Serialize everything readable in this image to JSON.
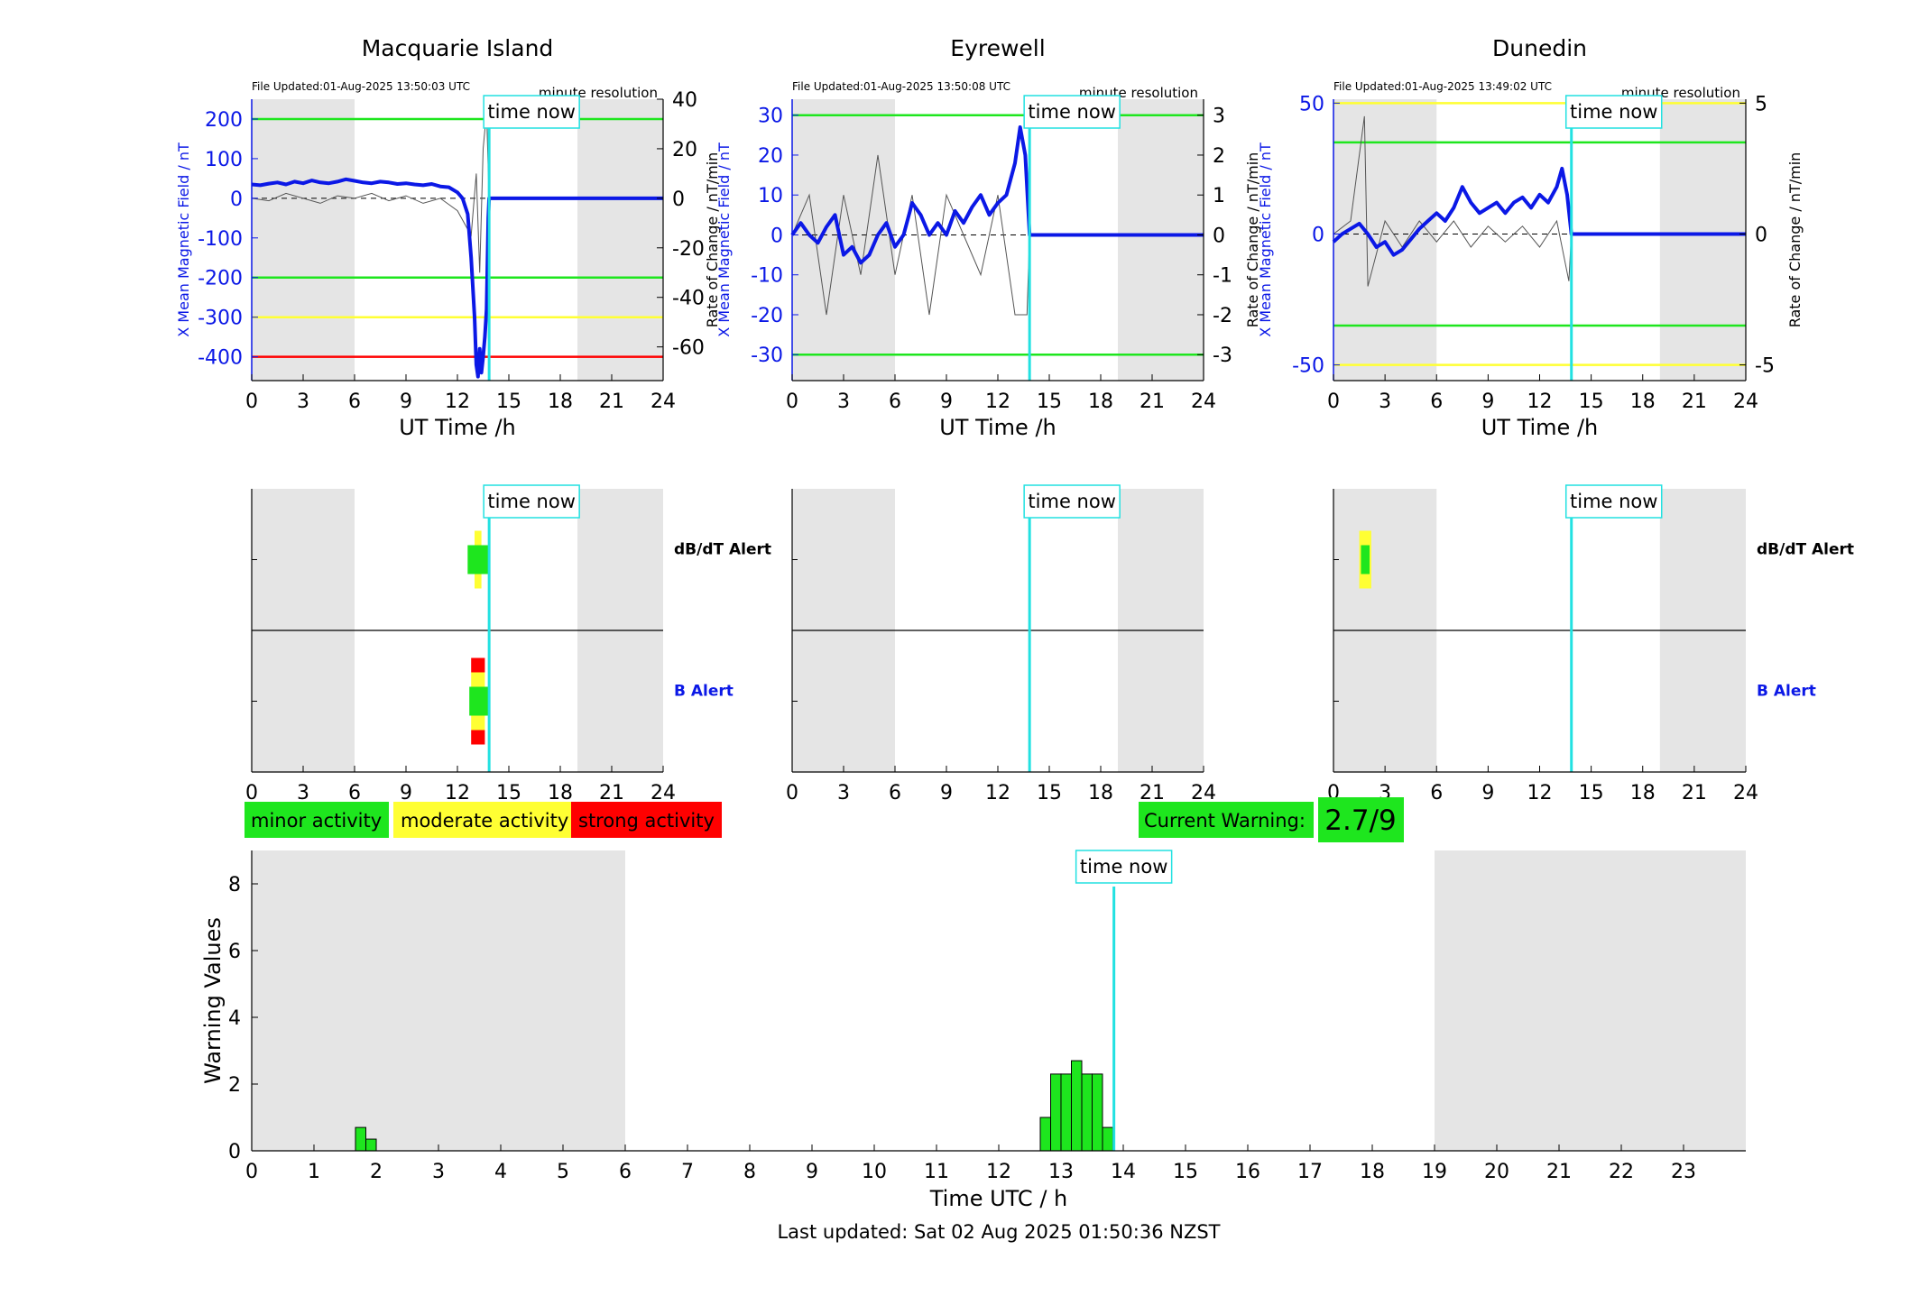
{
  "colors": {
    "field_line": "#0b18e6",
    "rate_line": "#555555",
    "night_shade": "#e5e5e5",
    "time_now": "#22e1e1",
    "minor": "#1ee61e",
    "moderate": "#ffff33",
    "strong": "#ff0000",
    "axis_blue": "#0b18e6"
  },
  "common": {
    "time_now_label": "time now",
    "time_now_hour": 13.85,
    "ut_xlabel": "UT Time /h",
    "resolution_label": "minute resolution",
    "x_ticks": [
      "0",
      "3",
      "6",
      "9",
      "12",
      "15",
      "18",
      "21",
      "24"
    ],
    "y_left_label": "X Mean Magnetic Field / nT",
    "y_right_label": "Rate of Change / nT/min",
    "night_ranges": [
      [
        0,
        6
      ],
      [
        19,
        24
      ]
    ],
    "dbdt_alert_label": "dB/dT Alert",
    "b_alert_label": "B Alert"
  },
  "legend": {
    "minor": "minor activity",
    "moderate": "moderate activity",
    "strong": "strong activity"
  },
  "current_warning": {
    "label": "Current Warning:",
    "value": "2.7/9"
  },
  "chart_data": [
    {
      "type": "line",
      "title": "Macquarie Island",
      "file_updated": "File Updated:01-Aug-2025 13:50:03 UTC",
      "ylim_left": [
        -460,
        250
      ],
      "yticks_left": [
        "200",
        "100",
        "0",
        "-100",
        "-200",
        "-300",
        "-400"
      ],
      "ylim_right": [
        -73.6,
        40
      ],
      "yticks_right": [
        "40",
        "20",
        "0",
        "-20",
        "-40",
        "-60"
      ],
      "thresholds": [
        {
          "value": 200,
          "level": "minor"
        },
        {
          "value": -200,
          "level": "minor"
        },
        {
          "value": -300,
          "level": "moderate"
        },
        {
          "value": -400,
          "level": "strong"
        }
      ],
      "series_field": [
        [
          0,
          35
        ],
        [
          0.5,
          33
        ],
        [
          1,
          37
        ],
        [
          1.5,
          40
        ],
        [
          2,
          35
        ],
        [
          2.5,
          42
        ],
        [
          3,
          38
        ],
        [
          3.5,
          45
        ],
        [
          4,
          40
        ],
        [
          4.5,
          38
        ],
        [
          5,
          42
        ],
        [
          5.5,
          48
        ],
        [
          6,
          44
        ],
        [
          6.5,
          40
        ],
        [
          7,
          38
        ],
        [
          7.5,
          42
        ],
        [
          8,
          40
        ],
        [
          8.5,
          36
        ],
        [
          9,
          38
        ],
        [
          9.5,
          35
        ],
        [
          10,
          33
        ],
        [
          10.5,
          36
        ],
        [
          11,
          30
        ],
        [
          11.5,
          28
        ],
        [
          12,
          15
        ],
        [
          12.3,
          0
        ],
        [
          12.6,
          -40
        ],
        [
          12.8,
          -150
        ],
        [
          13,
          -300
        ],
        [
          13.1,
          -420
        ],
        [
          13.2,
          -450
        ],
        [
          13.3,
          -380
        ],
        [
          13.4,
          -440
        ],
        [
          13.5,
          -400
        ],
        [
          13.6,
          -350
        ],
        [
          13.7,
          -280
        ],
        [
          13.8,
          -50
        ],
        [
          13.85,
          0
        ],
        [
          24,
          0
        ]
      ],
      "series_rate": [
        [
          0,
          0
        ],
        [
          1,
          -1
        ],
        [
          2,
          2
        ],
        [
          3,
          0
        ],
        [
          4,
          -2
        ],
        [
          5,
          1
        ],
        [
          6,
          0
        ],
        [
          7,
          2
        ],
        [
          8,
          -1
        ],
        [
          9,
          1
        ],
        [
          10,
          -2
        ],
        [
          11,
          0
        ],
        [
          12,
          -5
        ],
        [
          12.8,
          -15
        ],
        [
          13.1,
          10
        ],
        [
          13.3,
          -30
        ],
        [
          13.5,
          20
        ],
        [
          13.7,
          35
        ],
        [
          13.85,
          0
        ],
        [
          24,
          0
        ]
      ],
      "dbdt_alert": [
        {
          "x0": 12.6,
          "x1": 13.9,
          "level": "minor"
        },
        {
          "x0": 13.0,
          "x1": 13.4,
          "level": "moderate"
        }
      ],
      "b_alert": [
        {
          "x0": 12.7,
          "x1": 13.9,
          "level": "minor"
        },
        {
          "x0": 12.8,
          "x1": 13.6,
          "level": "moderate"
        },
        {
          "x0": 12.8,
          "x1": 13.6,
          "level": "strong"
        }
      ]
    },
    {
      "type": "line",
      "title": "Eyrewell",
      "file_updated": "File Updated:01-Aug-2025 13:50:08 UTC",
      "ylim_left": [
        -36.5,
        34
      ],
      "yticks_left": [
        "30",
        "20",
        "10",
        "0",
        "-10",
        "-20",
        "-30"
      ],
      "ylim_right": [
        -3.65,
        3.4
      ],
      "yticks_right": [
        "3",
        "2",
        "1",
        "0",
        "-1",
        "-2",
        "-3"
      ],
      "thresholds": [
        {
          "value": 30,
          "level": "minor"
        },
        {
          "value": -30,
          "level": "minor"
        }
      ],
      "series_field": [
        [
          0,
          0
        ],
        [
          0.5,
          3
        ],
        [
          1,
          0
        ],
        [
          1.5,
          -2
        ],
        [
          2,
          2
        ],
        [
          2.5,
          5
        ],
        [
          3,
          -5
        ],
        [
          3.5,
          -3
        ],
        [
          4,
          -7
        ],
        [
          4.5,
          -5
        ],
        [
          5,
          0
        ],
        [
          5.5,
          3
        ],
        [
          6,
          -3
        ],
        [
          6.5,
          0
        ],
        [
          7,
          8
        ],
        [
          7.5,
          5
        ],
        [
          8,
          0
        ],
        [
          8.5,
          3
        ],
        [
          9,
          0
        ],
        [
          9.5,
          6
        ],
        [
          10,
          3
        ],
        [
          10.5,
          7
        ],
        [
          11,
          10
        ],
        [
          11.5,
          5
        ],
        [
          12,
          8
        ],
        [
          12.5,
          10
        ],
        [
          13,
          18
        ],
        [
          13.3,
          27
        ],
        [
          13.6,
          20
        ],
        [
          13.85,
          0
        ],
        [
          24,
          0
        ]
      ],
      "series_rate": [
        [
          0,
          0
        ],
        [
          1,
          1
        ],
        [
          2,
          -2
        ],
        [
          3,
          1
        ],
        [
          4,
          -1
        ],
        [
          5,
          2
        ],
        [
          6,
          -1
        ],
        [
          7,
          1
        ],
        [
          8,
          -2
        ],
        [
          9,
          1
        ],
        [
          10,
          0
        ],
        [
          11,
          -1
        ],
        [
          12,
          1
        ],
        [
          13,
          -2
        ],
        [
          13.7,
          -2
        ],
        [
          13.85,
          0
        ],
        [
          24,
          0
        ]
      ],
      "dbdt_alert": [],
      "b_alert": []
    },
    {
      "type": "line",
      "title": "Dunedin",
      "file_updated": "File Updated:01-Aug-2025 13:49:02 UTC",
      "ylim_left": [
        -56,
        51.5
      ],
      "yticks_left": [
        "50",
        "0",
        "-50"
      ],
      "ylim_right": [
        -5.6,
        5.15
      ],
      "yticks_right": [
        "5",
        "0",
        "-5"
      ],
      "thresholds": [
        {
          "value": 50,
          "level": "moderate"
        },
        {
          "value": 35,
          "level": "minor"
        },
        {
          "value": -35,
          "level": "minor"
        },
        {
          "value": -50,
          "level": "moderate"
        }
      ],
      "series_field": [
        [
          0,
          -3
        ],
        [
          0.5,
          0
        ],
        [
          1,
          2
        ],
        [
          1.5,
          4
        ],
        [
          2,
          0
        ],
        [
          2.5,
          -5
        ],
        [
          3,
          -3
        ],
        [
          3.5,
          -8
        ],
        [
          4,
          -6
        ],
        [
          4.5,
          -2
        ],
        [
          5,
          2
        ],
        [
          5.5,
          5
        ],
        [
          6,
          8
        ],
        [
          6.5,
          5
        ],
        [
          7,
          10
        ],
        [
          7.5,
          18
        ],
        [
          8,
          12
        ],
        [
          8.5,
          8
        ],
        [
          9,
          10
        ],
        [
          9.5,
          12
        ],
        [
          10,
          8
        ],
        [
          10.5,
          12
        ],
        [
          11,
          14
        ],
        [
          11.5,
          10
        ],
        [
          12,
          15
        ],
        [
          12.5,
          12
        ],
        [
          13,
          18
        ],
        [
          13.3,
          25
        ],
        [
          13.6,
          15
        ],
        [
          13.85,
          0
        ],
        [
          24,
          0
        ]
      ],
      "series_rate": [
        [
          0,
          0
        ],
        [
          1,
          0.5
        ],
        [
          1.8,
          4.5
        ],
        [
          2,
          -2
        ],
        [
          3,
          0.5
        ],
        [
          4,
          -0.5
        ],
        [
          5,
          0.5
        ],
        [
          6,
          -0.3
        ],
        [
          7,
          0.5
        ],
        [
          8,
          -0.5
        ],
        [
          9,
          0.3
        ],
        [
          10,
          -0.3
        ],
        [
          11,
          0.3
        ],
        [
          12,
          -0.5
        ],
        [
          13,
          0.5
        ],
        [
          13.7,
          -1.8
        ],
        [
          13.85,
          0
        ],
        [
          24,
          0
        ]
      ],
      "dbdt_alert": [
        {
          "x0": 1.5,
          "x1": 2.2,
          "level": "moderate"
        },
        {
          "x0": 1.6,
          "x1": 2.1,
          "level": "minor"
        }
      ],
      "b_alert": []
    },
    {
      "type": "bar",
      "title": "",
      "xlabel": "Time UTC / h",
      "ylabel": "Warning Values",
      "xlim": [
        0,
        24
      ],
      "ylim": [
        0,
        9
      ],
      "x_ticks": [
        "0",
        "1",
        "2",
        "3",
        "4",
        "5",
        "6",
        "7",
        "8",
        "9",
        "10",
        "11",
        "12",
        "13",
        "14",
        "15",
        "16",
        "17",
        "18",
        "19",
        "20",
        "21",
        "22",
        "23"
      ],
      "y_ticks": [
        "0",
        "2",
        "4",
        "6",
        "8"
      ],
      "night_ranges": [
        [
          0,
          6
        ],
        [
          19,
          24
        ]
      ],
      "bars": [
        {
          "x": 1.75,
          "value": 0.7
        },
        {
          "x": 1.917,
          "value": 0.35
        },
        {
          "x": 12.75,
          "value": 1.0
        },
        {
          "x": 12.917,
          "value": 2.3
        },
        {
          "x": 13.083,
          "value": 2.3
        },
        {
          "x": 13.25,
          "value": 2.7
        },
        {
          "x": 13.417,
          "value": 2.3
        },
        {
          "x": 13.583,
          "value": 2.3
        },
        {
          "x": 13.75,
          "value": 0.7
        }
      ],
      "bar_width_hours": 0.1667,
      "time_now_hour": 13.85,
      "footer": "Last updated: Sat 02 Aug 2025 01:50:36 NZST"
    }
  ]
}
